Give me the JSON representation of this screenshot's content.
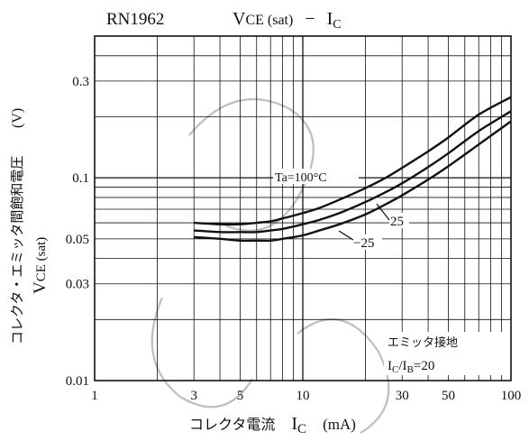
{
  "chart_data": {
    "type": "line",
    "part_number": "RN1962",
    "title": {
      "v": "V",
      "v_sub": "CE (sat)",
      "dash": "−",
      "i": "I",
      "i_sub": "C"
    },
    "xlabel": {
      "jp": "コレクタ電流",
      "sym": "I",
      "sub": "C",
      "unit": "(mA)"
    },
    "ylabel": {
      "jp": "コレクタ・エミッタ間飽和電圧",
      "unit": "(V)",
      "sym": "V",
      "sub": "CE (sat)"
    },
    "x_scale": "log",
    "y_scale": "log",
    "xlim": [
      1,
      100
    ],
    "ylim": [
      0.01,
      0.5
    ],
    "grid": true,
    "x_tick_labels": [
      {
        "value": 1,
        "label": "1"
      },
      {
        "value": 3,
        "label": "3"
      },
      {
        "value": 5,
        "label": "5"
      },
      {
        "value": 10,
        "label": "10"
      },
      {
        "value": 30,
        "label": "30"
      },
      {
        "value": 50,
        "label": "50"
      },
      {
        "value": 100,
        "label": "100"
      }
    ],
    "y_tick_labels": [
      {
        "value": 0.01,
        "label": "0.01"
      },
      {
        "value": 0.03,
        "label": "0.03"
      },
      {
        "value": 0.05,
        "label": "0.05"
      },
      {
        "value": 0.1,
        "label": "0.1"
      },
      {
        "value": 0.3,
        "label": "0.3"
      }
    ],
    "series": [
      {
        "name": "Ta=100°C",
        "x": [
          3,
          4,
          5,
          6,
          7,
          8,
          10,
          12,
          15,
          20,
          25,
          30,
          40,
          50,
          70,
          100
        ],
        "y": [
          0.06,
          0.059,
          0.059,
          0.06,
          0.061,
          0.063,
          0.067,
          0.071,
          0.078,
          0.089,
          0.1,
          0.112,
          0.135,
          0.158,
          0.205,
          0.25
        ]
      },
      {
        "name": "25",
        "x": [
          3,
          4,
          5,
          6,
          7,
          8,
          10,
          12,
          15,
          20,
          25,
          30,
          40,
          50,
          70,
          100
        ],
        "y": [
          0.055,
          0.054,
          0.054,
          0.054,
          0.055,
          0.056,
          0.059,
          0.062,
          0.067,
          0.076,
          0.085,
          0.094,
          0.113,
          0.132,
          0.17,
          0.213
        ]
      },
      {
        "name": "−25",
        "x": [
          3,
          4,
          5,
          6,
          7,
          8,
          10,
          12,
          15,
          20,
          25,
          30,
          40,
          50,
          70,
          100
        ],
        "y": [
          0.051,
          0.05,
          0.049,
          0.049,
          0.049,
          0.05,
          0.052,
          0.055,
          0.059,
          0.066,
          0.074,
          0.082,
          0.098,
          0.114,
          0.146,
          0.19
        ]
      }
    ],
    "annotation": {
      "line1": "エミッタ接地",
      "ic": "I",
      "ic_sub": "C",
      "slash": "/",
      "ib": "I",
      "ib_sub": "B",
      "eq": "=20"
    }
  }
}
